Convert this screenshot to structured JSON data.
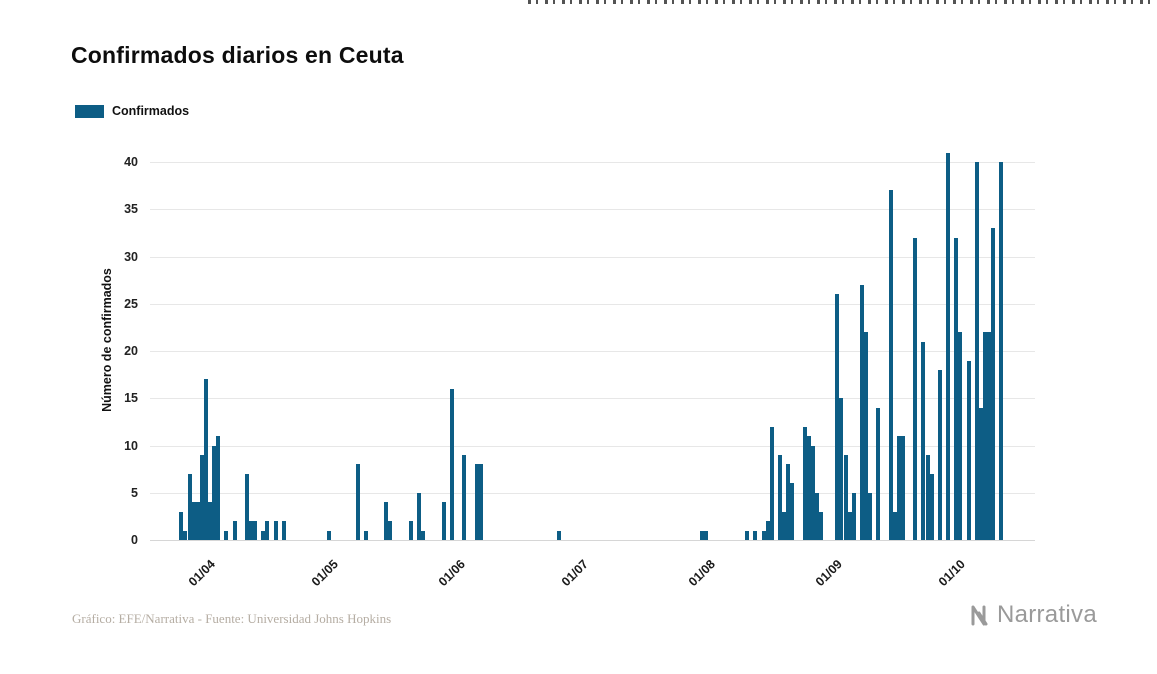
{
  "title": "Confirmados diarios en Ceuta",
  "legend": {
    "label": "Confirmados",
    "color": "#0d5d85"
  },
  "footer": {
    "credit": "Gráfico: EFE/Narrativa - Fuente: Universidad Johns Hopkins"
  },
  "logo": {
    "text": "Narrativa"
  },
  "chart_data": {
    "type": "bar",
    "title": "Confirmados diarios en Ceuta",
    "series_name": "Confirmados",
    "xlabel": "",
    "ylabel": "Número de confirmados",
    "ylim": [
      0,
      41.3
    ],
    "grid": true,
    "legend_position": "top-left",
    "bar_color": "#0d5d85",
    "y_ticks": [
      0,
      5,
      10,
      15,
      20,
      25,
      30,
      35,
      40
    ],
    "x_ticks": [
      {
        "day": 15,
        "label": "01/04"
      },
      {
        "day": 45,
        "label": "01/05"
      },
      {
        "day": 76,
        "label": "01/06"
      },
      {
        "day": 106,
        "label": "01/07"
      },
      {
        "day": 137,
        "label": "01/08"
      },
      {
        "day": 168,
        "label": "01/09"
      },
      {
        "day": 198,
        "label": "01/10"
      }
    ],
    "timeline_days": 216,
    "bars": [
      [
        8,
        3
      ],
      [
        9,
        1
      ],
      [
        10,
        7
      ],
      [
        11,
        4
      ],
      [
        12,
        4
      ],
      [
        13,
        9
      ],
      [
        14,
        17
      ],
      [
        15,
        4
      ],
      [
        16,
        10
      ],
      [
        17,
        11
      ],
      [
        19,
        1
      ],
      [
        21,
        2
      ],
      [
        24,
        7
      ],
      [
        25,
        2
      ],
      [
        26,
        2
      ],
      [
        28,
        1
      ],
      [
        29,
        2
      ],
      [
        31,
        2
      ],
      [
        33,
        2
      ],
      [
        44,
        1
      ],
      [
        51,
        8
      ],
      [
        53,
        1
      ],
      [
        58,
        4
      ],
      [
        59,
        2
      ],
      [
        64,
        2
      ],
      [
        66,
        5
      ],
      [
        67,
        1
      ],
      [
        72,
        4
      ],
      [
        74,
        16
      ],
      [
        77,
        9
      ],
      [
        80,
        8
      ],
      [
        81,
        8
      ],
      [
        100,
        1
      ],
      [
        135,
        1
      ],
      [
        136,
        1
      ],
      [
        146,
        1
      ],
      [
        148,
        1
      ],
      [
        150,
        1
      ],
      [
        151,
        2
      ],
      [
        152,
        12
      ],
      [
        154,
        9
      ],
      [
        155,
        3
      ],
      [
        156,
        8
      ],
      [
        157,
        6
      ],
      [
        160,
        12
      ],
      [
        161,
        11
      ],
      [
        162,
        10
      ],
      [
        163,
        5
      ],
      [
        164,
        3
      ],
      [
        168,
        26
      ],
      [
        169,
        15
      ],
      [
        170,
        9
      ],
      [
        171,
        3
      ],
      [
        172,
        5
      ],
      [
        174,
        27
      ],
      [
        175,
        22
      ],
      [
        176,
        5
      ],
      [
        178,
        14
      ],
      [
        181,
        37
      ],
      [
        182,
        3
      ],
      [
        183,
        11
      ],
      [
        184,
        11
      ],
      [
        187,
        32
      ],
      [
        189,
        21
      ],
      [
        190,
        9
      ],
      [
        191,
        7
      ],
      [
        193,
        18
      ],
      [
        195,
        41
      ],
      [
        197,
        32
      ],
      [
        198,
        22
      ],
      [
        200,
        19
      ],
      [
        202,
        40
      ],
      [
        203,
        14
      ],
      [
        204,
        22
      ],
      [
        205,
        22
      ],
      [
        206,
        33
      ],
      [
        208,
        40
      ]
    ]
  }
}
